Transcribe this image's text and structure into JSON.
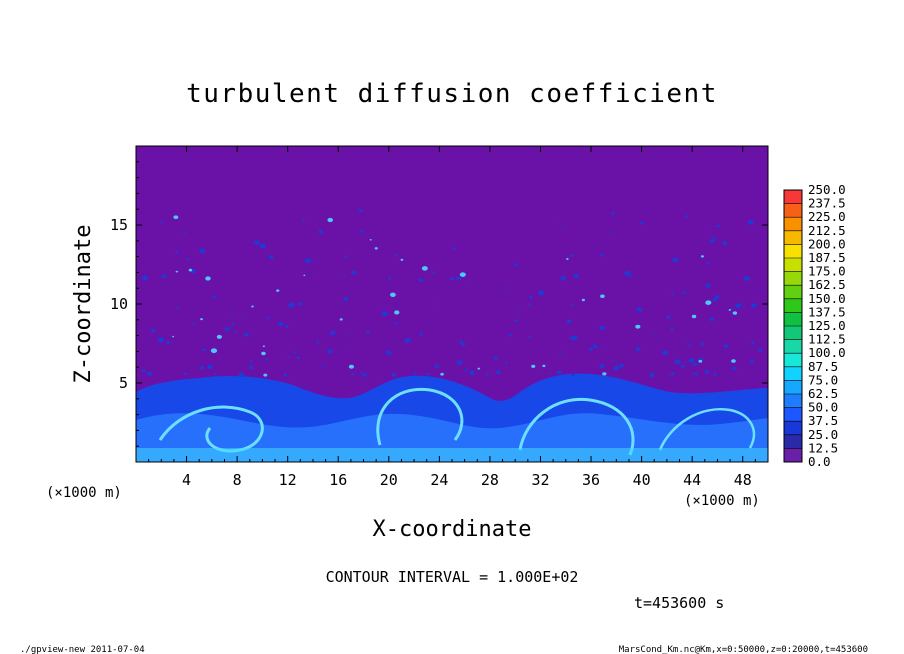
{
  "chart_data": {
    "type": "heatmap",
    "title": "turbulent diffusion coefficient",
    "xlabel": "X-coordinate",
    "ylabel": "Z-coordinate",
    "x_unit": "(×1000 m)",
    "y_unit": "(×1000 m)",
    "xlim": [
      0,
      50
    ],
    "ylim": [
      0,
      20
    ],
    "x_ticks": [
      4,
      8,
      12,
      16,
      20,
      24,
      28,
      32,
      36,
      40,
      44,
      48
    ],
    "y_ticks": [
      5,
      10,
      15
    ],
    "colorbar": {
      "levels": [
        "0.0",
        "12.5",
        "25.0",
        "37.5",
        "50.0",
        "62.5",
        "75.0",
        "87.5",
        "100.0",
        "112.5",
        "125.0",
        "137.5",
        "150.0",
        "162.5",
        "175.0",
        "187.5",
        "200.0",
        "212.5",
        "225.0",
        "237.5",
        "250.0"
      ],
      "colors": [
        "#6a1fa8",
        "#2a2aa8",
        "#1838d8",
        "#1c58ff",
        "#1e7cff",
        "#16a8ff",
        "#12d2ff",
        "#18e8d8",
        "#18d8a8",
        "#10c878",
        "#10c040",
        "#30c818",
        "#60d010",
        "#98d808",
        "#c8e000",
        "#f8e000",
        "#f8b800",
        "#f89000",
        "#f86018",
        "#f83838",
        "#f86a7a"
      ]
    },
    "contour_interval": "CONTOUR INTERVAL = 1.000E+02",
    "time_label": "t=453600 s",
    "footer_left": "./gpview-new  2011-07-04",
    "footer_right": "MarsCond_Km.nc@Km,x=0:50000,z=0:20000,t=453600",
    "colors": {
      "background_field": "#6a12a8",
      "low_layer": "#1040e0",
      "high_layer": "#40d8ff"
    }
  }
}
